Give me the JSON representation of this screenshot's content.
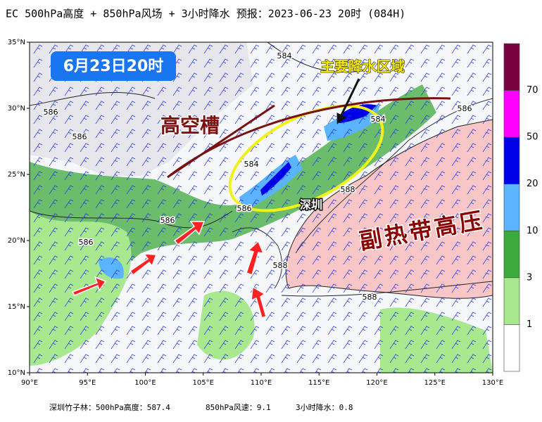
{
  "header": {
    "title": "EC 500hPa高度 + 850hPa风场 + 3小时降水  预报：2023-06-23 20时 (084H)"
  },
  "date_badge": "6月23日20时",
  "annotations": {
    "rain_area": "主要降水区域",
    "trough": "高空槽",
    "city": "深圳",
    "high": "副热带高压"
  },
  "map": {
    "lat_labels": [
      "35°N",
      "30°N",
      "25°N",
      "20°N",
      "15°N",
      "10°N"
    ],
    "lon_labels": [
      "90°E",
      "95°E",
      "100°E",
      "105°E",
      "110°E",
      "115°E",
      "120°E",
      "125°E",
      "130°E"
    ],
    "contour_labels": [
      "584",
      "586",
      "586",
      "584",
      "586",
      "586",
      "586",
      "588",
      "588",
      "586",
      "588",
      "584"
    ]
  },
  "colorbar": {
    "colors": [
      "#7a0042",
      "#ff00ff",
      "#0000e6",
      "#5ab4ff",
      "#3caa3c",
      "#a8e88e",
      "#ffffff"
    ],
    "labels": [
      "70",
      "50",
      "20",
      "10",
      "3",
      "1"
    ]
  },
  "footer": [
    "深圳竹子林：500hPa高度：587.4",
    "850hPa风速：9.1",
    "3小时降水：0.8"
  ]
}
